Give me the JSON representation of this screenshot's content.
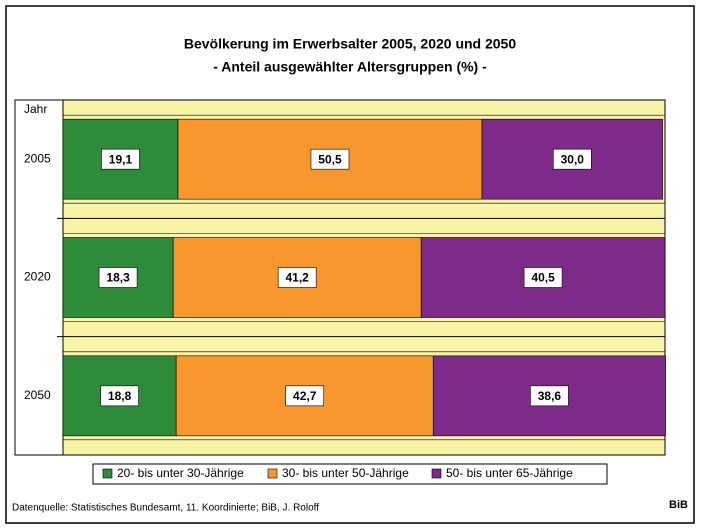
{
  "chart_data": {
    "type": "stacked_barh",
    "title": "Bevölkerung im Erwerbsalter 2005, 2020 und 2050",
    "subtitle": "- Anteil ausgewählter Altersgruppen (%) -",
    "y_label": "Jahr",
    "categories": [
      "2005",
      "2020",
      "2050"
    ],
    "series": [
      {
        "name": "20- bis unter 30-Jährige",
        "color": "#2e8b3a",
        "values": [
          19.1,
          18.3,
          18.8
        ],
        "value_labels": [
          "19,1",
          "18,3",
          "18,8"
        ]
      },
      {
        "name": "30- bis unter 50-Jährige",
        "color": "#f7972e",
        "values": [
          50.5,
          41.2,
          42.7
        ],
        "value_labels": [
          "50,5",
          "41,2",
          "42,7"
        ]
      },
      {
        "name": "50- bis unter 65-Jährige",
        "color": "#7d2a88",
        "values": [
          30.0,
          40.5,
          38.6
        ],
        "value_labels": [
          "30,0",
          "40,5",
          "38,6"
        ]
      }
    ],
    "xlim": [
      0,
      100
    ],
    "source": "Datenquelle: Statistisches Bundesamt, 11. Koordinierte; BiB, J. Roloff",
    "brand": "BiB"
  }
}
